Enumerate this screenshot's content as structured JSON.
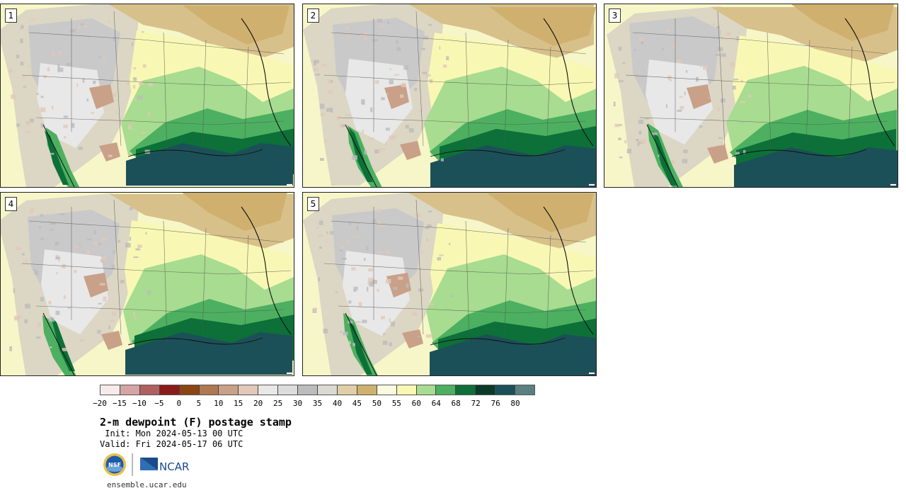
{
  "panels": [
    {
      "label": "1",
      "variant": 0
    },
    {
      "label": "2",
      "variant": 1
    },
    {
      "label": "3",
      "variant": 2
    },
    {
      "label": "4",
      "variant": 3
    },
    {
      "label": "5",
      "variant": 4
    }
  ],
  "colorbar": {
    "tick_labels": [
      "-20",
      "-15",
      "-10",
      "-5",
      "0",
      "5",
      "10",
      "15",
      "20",
      "25",
      "30",
      "35",
      "40",
      "45",
      "50",
      "55",
      "60",
      "64",
      "68",
      "72",
      "76",
      "80"
    ],
    "colors": [
      "#f6ebeb",
      "#d6a4a4",
      "#b06060",
      "#8b1a1a",
      "#8b4513",
      "#b07850",
      "#c9a088",
      "#e2c8b8",
      "#e8e8e8",
      "#dcdcdc",
      "#bcbcbc",
      "#dadad2",
      "#e0cfa6",
      "#cfb06e",
      "#fafae0",
      "#f8f8b4",
      "#a8dc90",
      "#4cb060",
      "#0c7038",
      "#0a3a28",
      "#1c5058",
      "#5a8080"
    ]
  },
  "text": {
    "title": "2-m dewpoint (F) postage stamp",
    "init": " Init: Mon 2024-05-13 00 UTC",
    "valid": "Valid: Fri 2024-05-17 06 UTC",
    "site": "ensemble.ucar.edu",
    "nsf_logo_text": "NSF",
    "ncar_logo_text": "NCAR"
  }
}
